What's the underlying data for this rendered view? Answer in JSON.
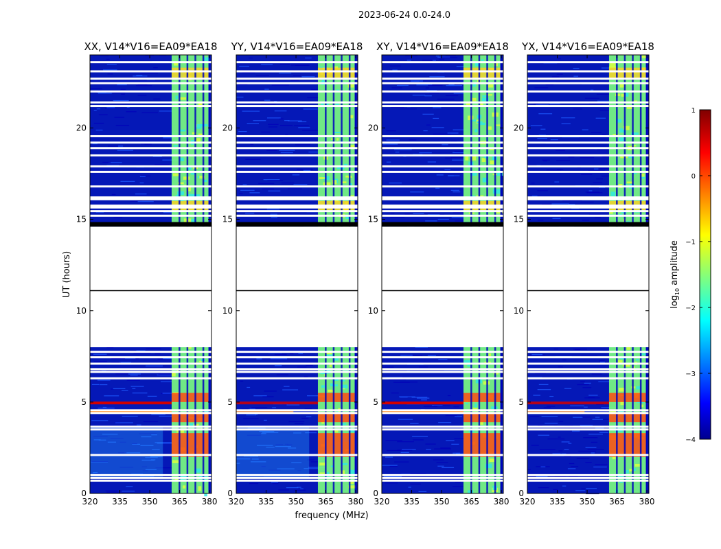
{
  "suptitle": "2023-06-24 0.0-24.0",
  "colors": {
    "background": "#00008f",
    "grid_row_missing": "#ffffff",
    "black_band": "#000000"
  },
  "chart_data": {
    "type": "heatmap",
    "xlabel": "frequency (MHz)",
    "ylabel": "UT (hours)",
    "xlim": [
      320,
      381
    ],
    "ylim": [
      0,
      24
    ],
    "x_ticks": [
      320,
      335,
      350,
      365,
      380
    ],
    "x_tick_labels": [
      "320",
      "335",
      "350",
      "365",
      "380"
    ],
    "y_ticks": [
      0,
      5,
      10,
      15,
      20
    ],
    "y_tick_labels": [
      "0",
      "5",
      "10",
      "15",
      "20"
    ],
    "colorbar": {
      "label": "log10 amplitude",
      "label_main": "log",
      "label_sub": "10",
      "label_rest": " amplitude",
      "range": [
        -4,
        1
      ],
      "ticks": [
        1,
        0,
        -1,
        -2,
        -3,
        -4
      ],
      "tick_labels": [
        "1",
        "0",
        "−1",
        "−2",
        "−3",
        "−4"
      ]
    },
    "panels": [
      {
        "title": "XX, V14*V16=EA09*EA18",
        "strong_5h": true
      },
      {
        "title": "YY, V14*V16=EA09*EA18",
        "strong_5h": false
      },
      {
        "title": "XY, V14*V16=EA09*EA18",
        "strong_5h": true
      },
      {
        "title": "YX, V14*V16=EA09*EA18",
        "strong_5h": false
      }
    ],
    "no_data_ut": [
      [
        8.0,
        11.1
      ],
      [
        11.1,
        14.6
      ]
    ],
    "flagged_black_ut": [
      [
        14.6,
        14.85
      ]
    ],
    "gap_ut": [
      0.7,
      0.85,
      1.0,
      2.1,
      3.5,
      3.65,
      4.4,
      4.55,
      6.3,
      6.65,
      6.8,
      7.1,
      7.45,
      7.75,
      15.2,
      15.45,
      15.65,
      15.75,
      16.1,
      16.2,
      16.8,
      17.6,
      17.9,
      18.5,
      18.9,
      19.2,
      19.55,
      21.2,
      21.4,
      22.0,
      22.45,
      22.7,
      23.1,
      23.6
    ],
    "band_mhz": [
      361,
      381
    ],
    "band_columns_mhz": [
      365,
      369,
      373,
      377,
      380
    ],
    "bright_ut": [
      [
        2.0,
        3.3
      ],
      [
        3.9,
        4.4
      ],
      [
        5.0,
        5.5
      ],
      [
        15.5,
        16.0
      ],
      [
        22.7,
        23.3
      ]
    ],
    "red_line_ut": [
      4.95,
      4.48
    ]
  }
}
